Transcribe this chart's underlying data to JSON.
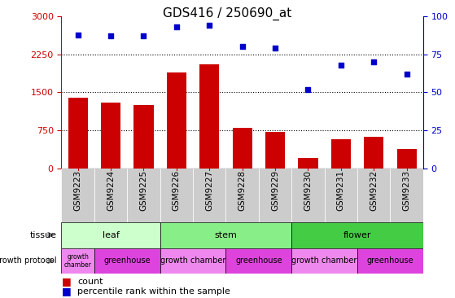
{
  "title": "GDS416 / 250690_at",
  "samples": [
    "GSM9223",
    "GSM9224",
    "GSM9225",
    "GSM9226",
    "GSM9227",
    "GSM9228",
    "GSM9229",
    "GSM9230",
    "GSM9231",
    "GSM9232",
    "GSM9233"
  ],
  "counts": [
    1400,
    1300,
    1250,
    1900,
    2050,
    800,
    720,
    200,
    580,
    620,
    380
  ],
  "percentiles": [
    88,
    87,
    87,
    93,
    94,
    80,
    79,
    52,
    68,
    70,
    62
  ],
  "ylim_left": [
    0,
    3000
  ],
  "ylim_right": [
    0,
    100
  ],
  "yticks_left": [
    0,
    750,
    1500,
    2250,
    3000
  ],
  "yticks_right": [
    0,
    25,
    50,
    75,
    100
  ],
  "tissue_groups": [
    {
      "label": "leaf",
      "start": 0,
      "end": 3,
      "color": "#ccffcc"
    },
    {
      "label": "stem",
      "start": 3,
      "end": 7,
      "color": "#88ee88"
    },
    {
      "label": "flower",
      "start": 7,
      "end": 11,
      "color": "#44cc44"
    }
  ],
  "growth_protocol_groups": [
    {
      "label": "growth\nchamber",
      "start": 0,
      "end": 1,
      "color": "#ee88ee"
    },
    {
      "label": "greenhouse",
      "start": 1,
      "end": 3,
      "color": "#dd44dd"
    },
    {
      "label": "growth chamber",
      "start": 3,
      "end": 5,
      "color": "#ee88ee"
    },
    {
      "label": "greenhouse",
      "start": 5,
      "end": 7,
      "color": "#dd44dd"
    },
    {
      "label": "growth chamber",
      "start": 7,
      "end": 9,
      "color": "#ee88ee"
    },
    {
      "label": "greenhouse",
      "start": 9,
      "end": 11,
      "color": "#dd44dd"
    }
  ],
  "bar_color": "#cc0000",
  "dot_color": "#0000cc",
  "left_axis_color": "#cc0000",
  "right_axis_color": "#0000cc",
  "xtick_bg_color": "#cccccc",
  "background_color": "#ffffff",
  "title_fontsize": 11,
  "tick_fontsize": 7.5,
  "annotation_fontsize": 8
}
